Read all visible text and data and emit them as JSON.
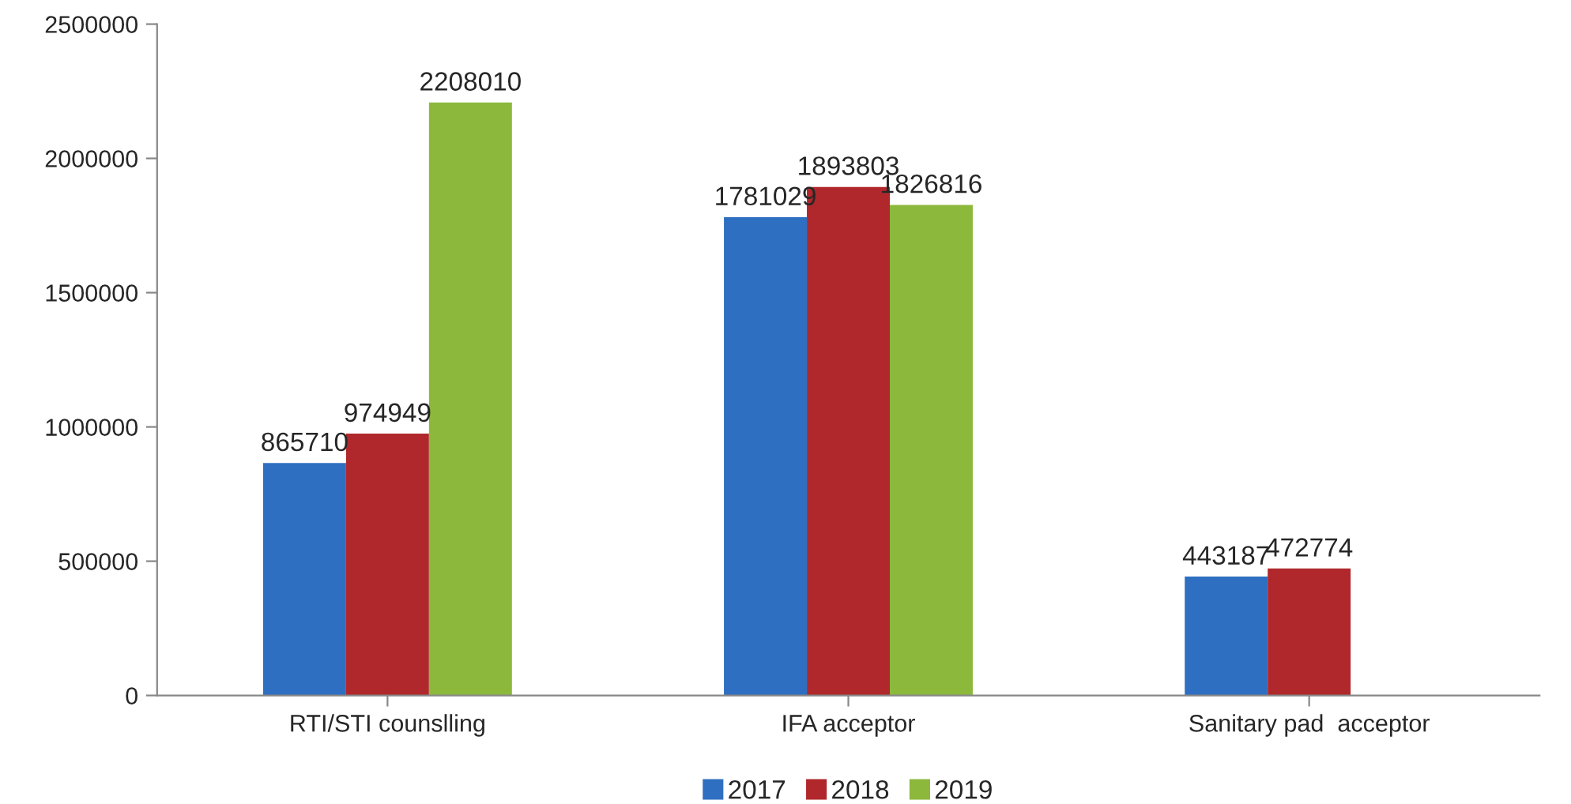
{
  "chart_data": {
    "type": "bar",
    "categories": [
      "RTI/STI counslling",
      "IFA acceptor",
      "Sanitary pad  acceptor"
    ],
    "series": [
      {
        "name": "2017",
        "color": "#2f6fc1",
        "values": [
          865710,
          1781029,
          443187
        ]
      },
      {
        "name": "2018",
        "color": "#b0282b",
        "values": [
          974949,
          1893803,
          472774
        ]
      },
      {
        "name": "2019",
        "color": "#8cb83c",
        "values": [
          2208010,
          1826816,
          null
        ]
      }
    ],
    "ylim": [
      0,
      2500000
    ],
    "yticks": [
      0,
      500000,
      1000000,
      1500000,
      2000000,
      2500000
    ],
    "grid": false,
    "legend": "bottom",
    "data_labels": true
  }
}
